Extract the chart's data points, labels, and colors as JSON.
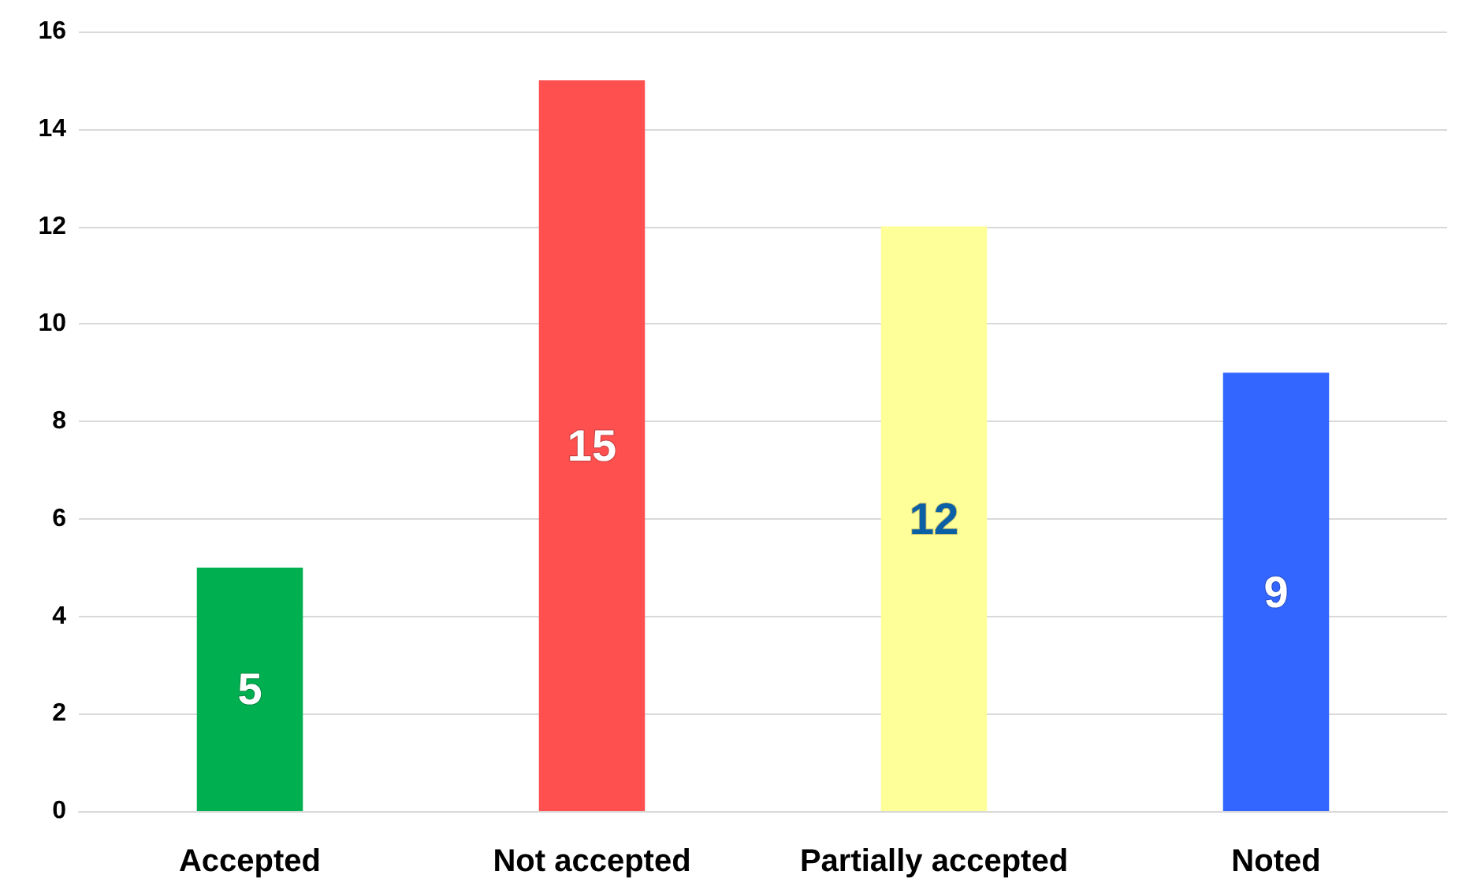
{
  "chart_data": {
    "type": "bar",
    "categories": [
      "Accepted",
      "Not accepted",
      "Partially accepted",
      "Noted"
    ],
    "values": [
      5,
      15,
      12,
      9
    ],
    "colors": [
      "#00b050",
      "#ff5050",
      "#ffff99",
      "#3366ff"
    ],
    "ylim": [
      0,
      16
    ],
    "yticks": [
      0,
      2,
      4,
      6,
      8,
      10,
      12,
      14,
      16
    ],
    "grid": "y",
    "data_labels": true
  }
}
